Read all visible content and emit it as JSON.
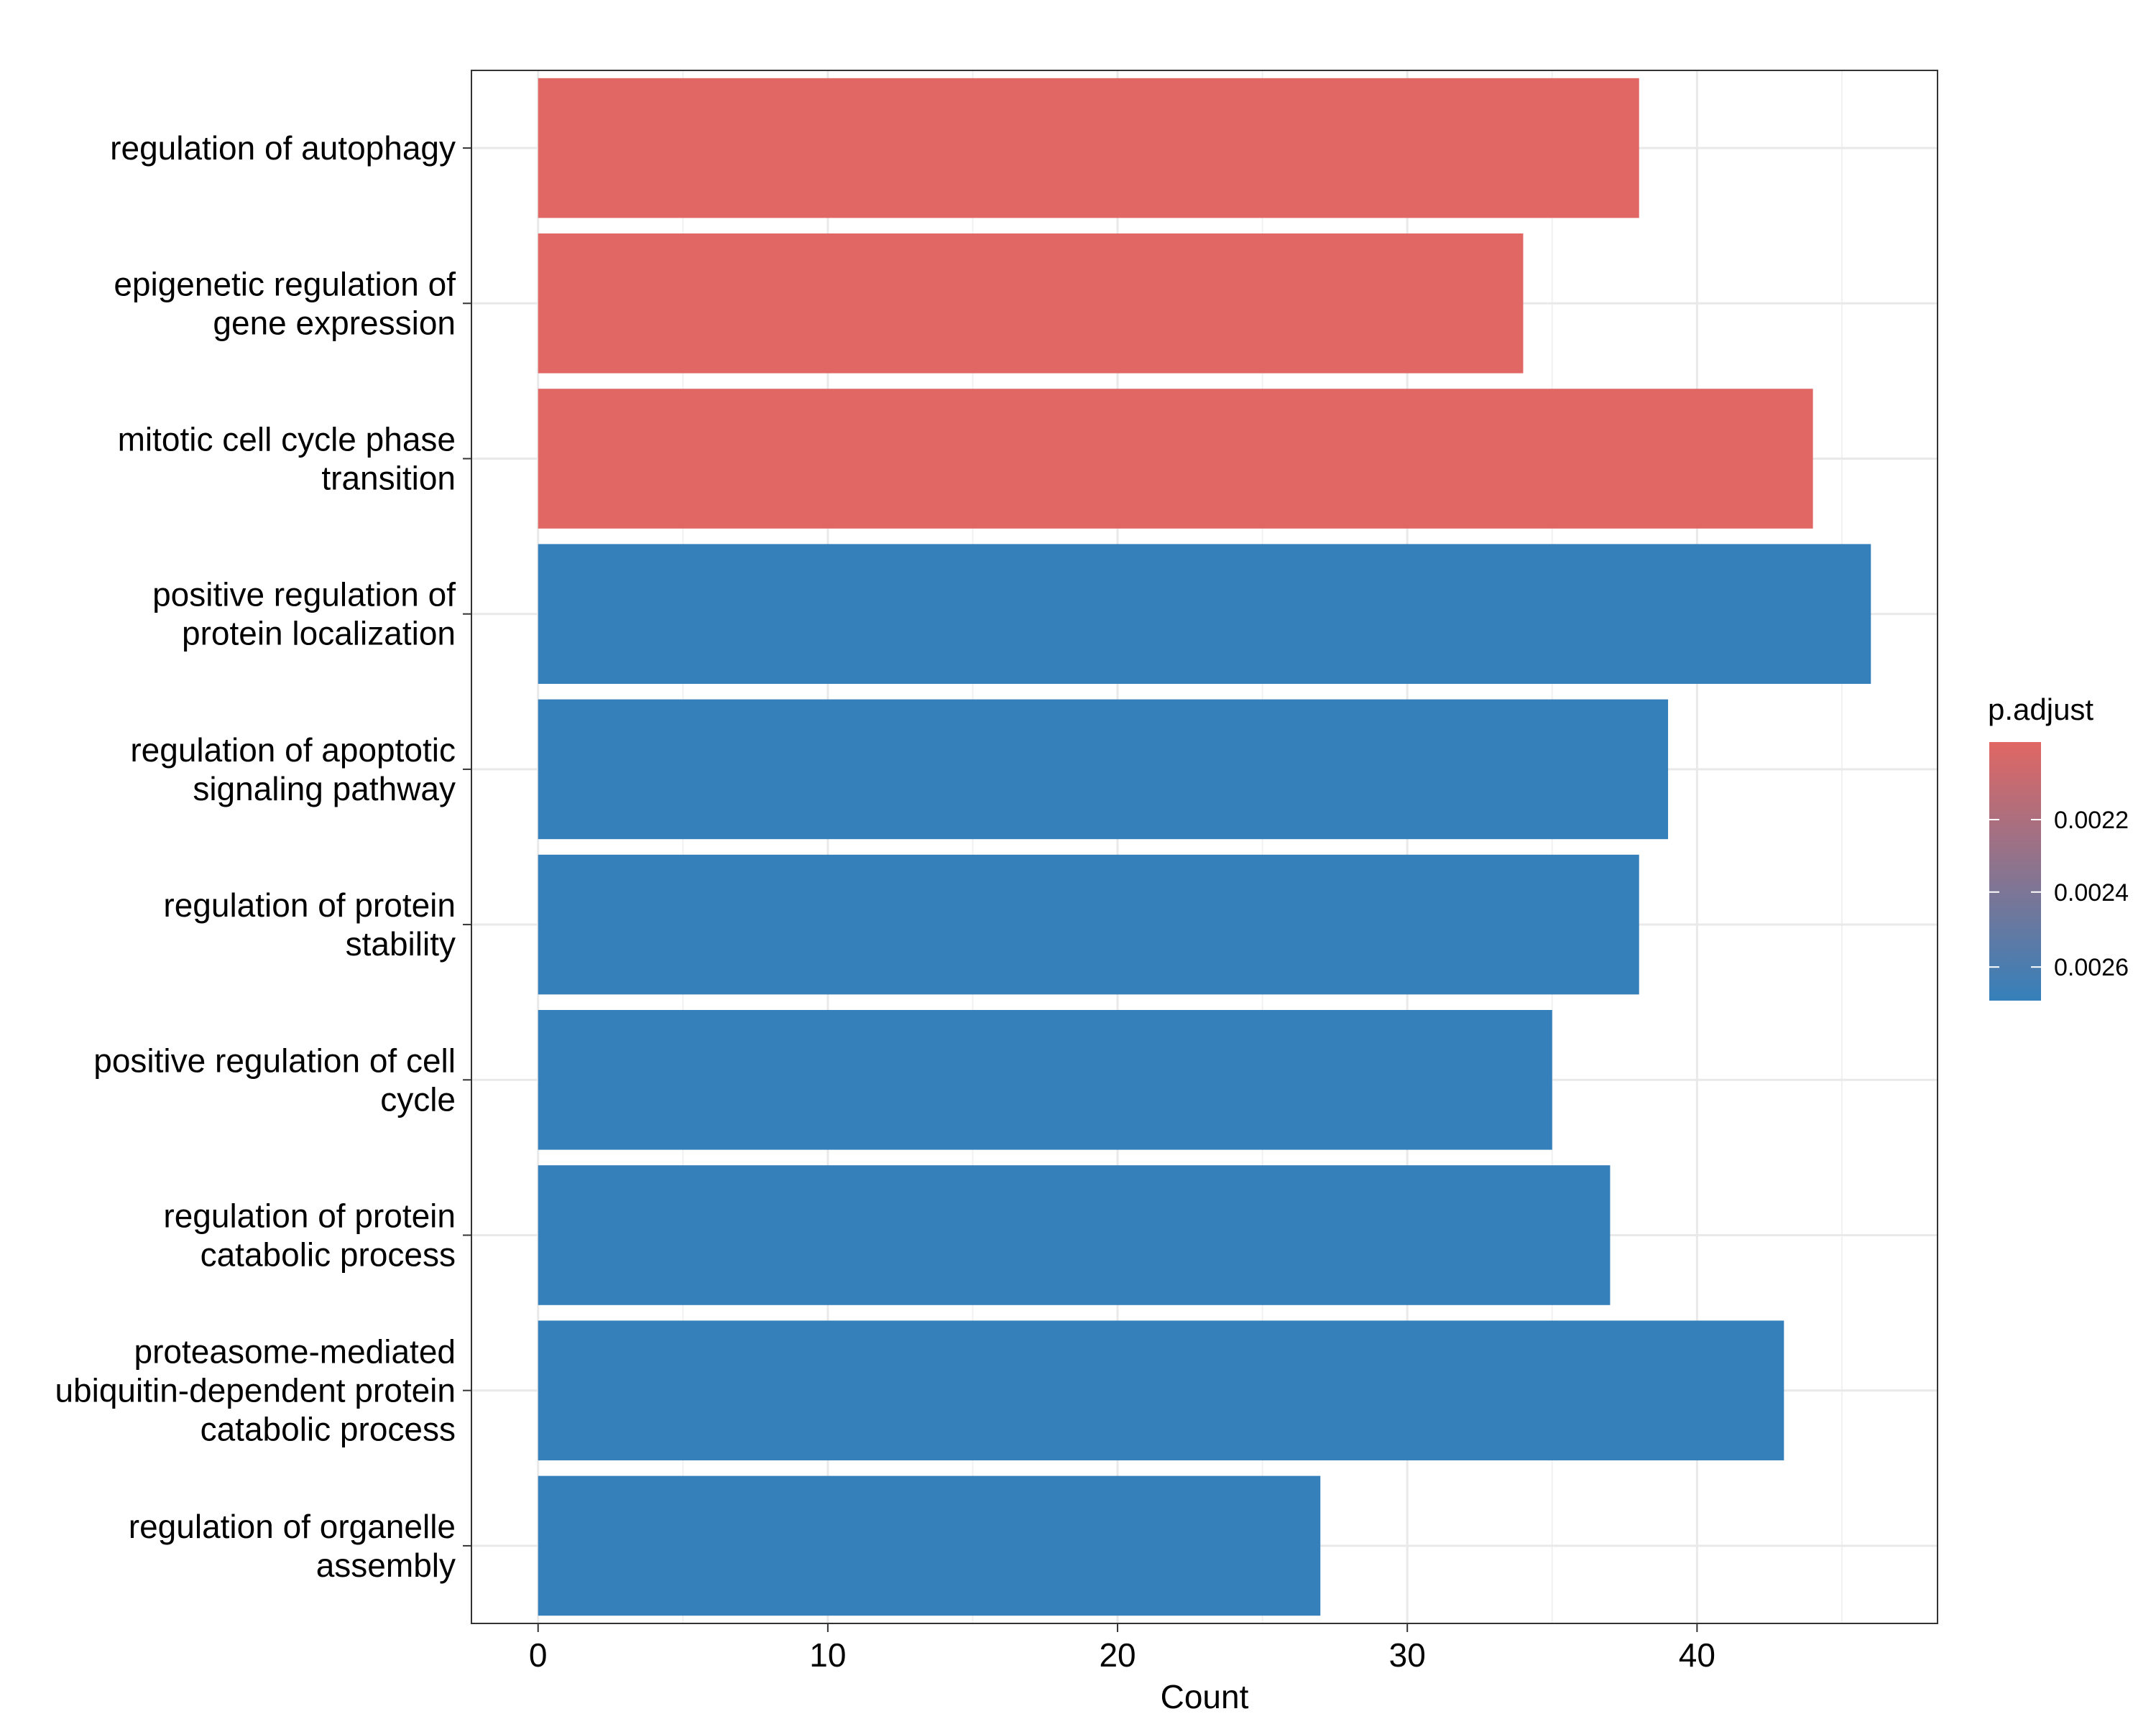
{
  "chart_data": {
    "type": "bar",
    "orientation": "horizontal",
    "categories": [
      [
        "regulation of autophagy"
      ],
      [
        "epigenetic regulation of",
        "gene expression"
      ],
      [
        "mitotic cell cycle phase",
        "transition"
      ],
      [
        "positive regulation of",
        "protein localization"
      ],
      [
        "regulation of apoptotic",
        "signaling pathway"
      ],
      [
        "regulation of protein",
        "stability"
      ],
      [
        "positive regulation of cell",
        "cycle"
      ],
      [
        "regulation of protein",
        "catabolic process"
      ],
      [
        "proteasome-mediated",
        "ubiquitin-dependent protein",
        "catabolic process"
      ],
      [
        "regulation of organelle",
        "assembly"
      ]
    ],
    "values": [
      38,
      34,
      44,
      46,
      39,
      38,
      35,
      37,
      43,
      27
    ],
    "bar_colors": [
      "#E06764",
      "#E06764",
      "#E06764",
      "#3580BA",
      "#3580BA",
      "#3580BA",
      "#3580BA",
      "#3580BA",
      "#3580BA",
      "#3580BA"
    ],
    "xlabel": "Count",
    "ylabel": "",
    "xlim": [
      -2.3,
      48.3
    ],
    "x_ticks": [
      0,
      10,
      20,
      30,
      40
    ],
    "x_tick_labels": [
      "0",
      "10",
      "20",
      "30",
      "40"
    ],
    "grid": true,
    "legend": {
      "title": "p.adjust",
      "placement": "right",
      "tick_labels": [
        "0.0022",
        "0.0024",
        "0.0026"
      ],
      "color_low": "#E06764",
      "color_high": "#3580BA"
    }
  }
}
